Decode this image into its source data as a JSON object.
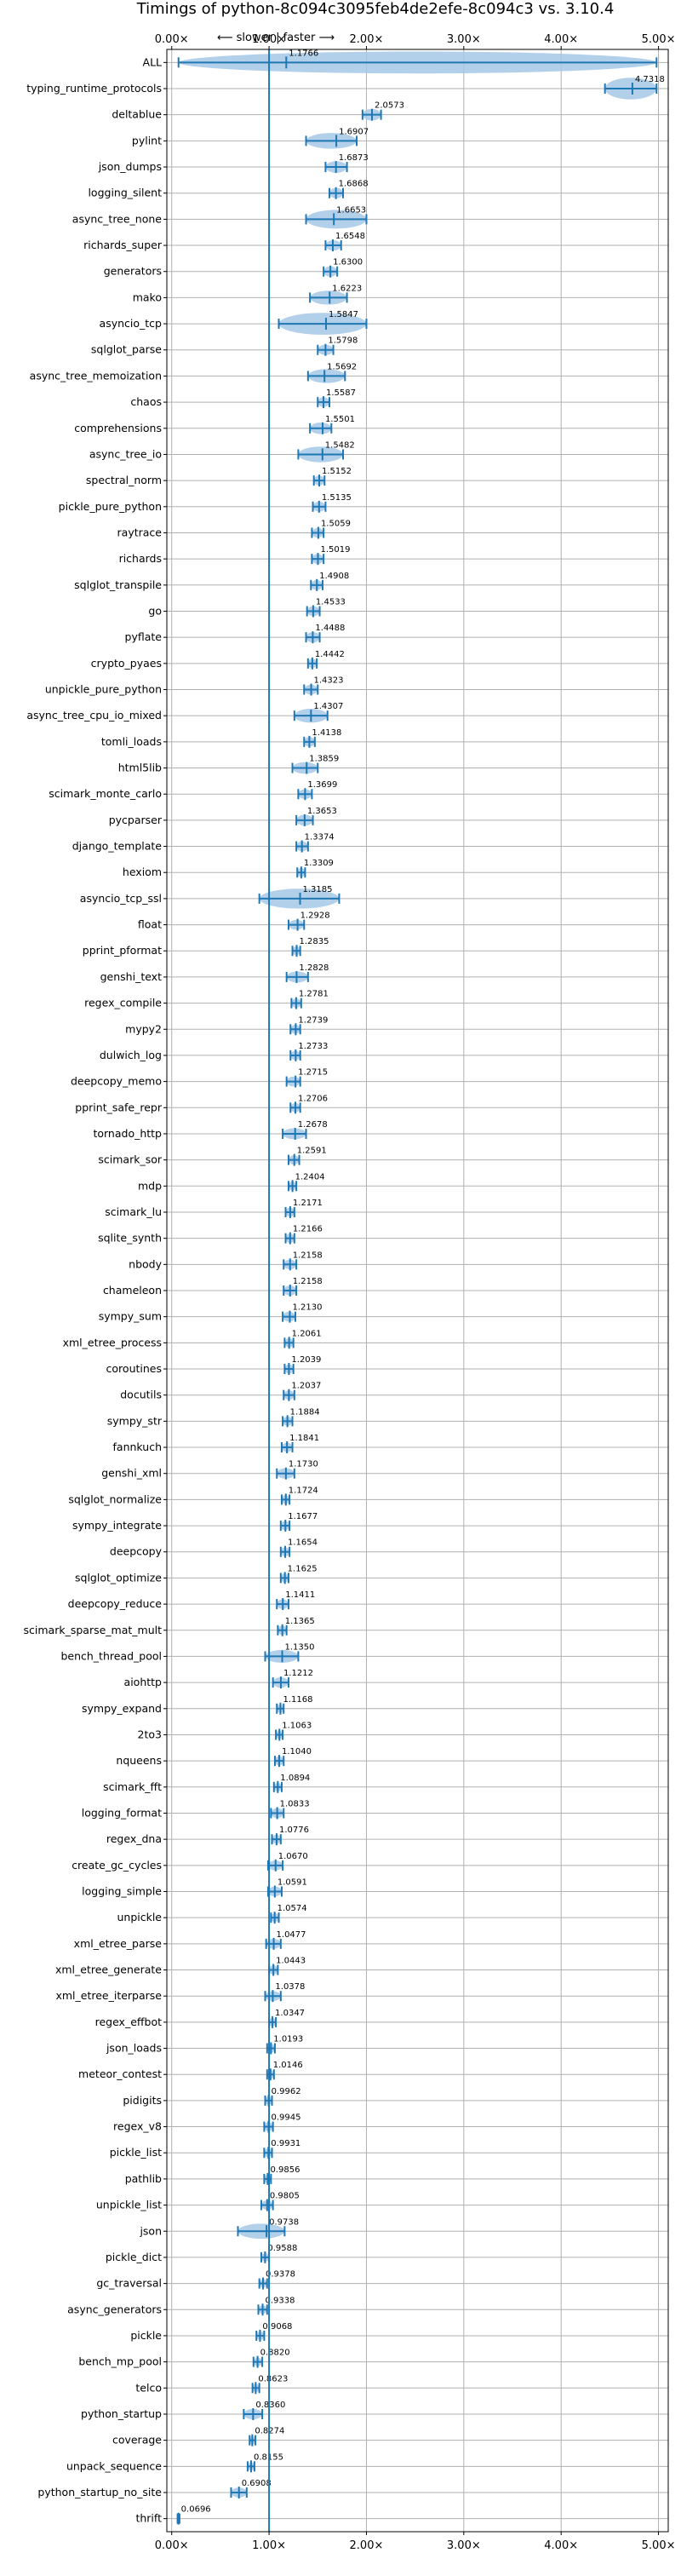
{
  "chart_data": {
    "type": "violin",
    "title": "Timings of python-8c094c3095feb4de2efe-8c094c3 vs. 3.10.4",
    "direction_note": "⟵ slower | faster ⟶",
    "xlim": [
      -0.05,
      5.1
    ],
    "xticks": [
      0,
      1,
      2,
      3,
      4,
      5
    ],
    "xtick_labels": [
      "0.00×",
      "1.00×",
      "2.00×",
      "3.00×",
      "4.00×",
      "5.00×"
    ],
    "reference_line": 1.0,
    "grid": true,
    "colors": {
      "violin": "#a6c8e8",
      "line": "#1f77b4",
      "axes": "#000000",
      "grid": "#b0b0b0",
      "median": "#ff8080"
    },
    "benchmarks": [
      {
        "name": "ALL",
        "median": 1.1766,
        "min": 0.07,
        "max": 4.98,
        "spread": 0.4
      },
      {
        "name": "typing_runtime_protocols",
        "median": 4.7318,
        "min": 4.45,
        "max": 4.98,
        "spread": 0.25
      },
      {
        "name": "deltablue",
        "median": 2.0573,
        "min": 1.96,
        "max": 2.15,
        "spread": 0.08
      },
      {
        "name": "pylint",
        "median": 1.6907,
        "min": 1.38,
        "max": 1.9,
        "spread": 0.15
      },
      {
        "name": "json_dumps",
        "median": 1.6873,
        "min": 1.58,
        "max": 1.8,
        "spread": 0.08
      },
      {
        "name": "logging_silent",
        "median": 1.6868,
        "min": 1.62,
        "max": 1.76,
        "spread": 0.06
      },
      {
        "name": "async_tree_none",
        "median": 1.6653,
        "min": 1.38,
        "max": 2.0,
        "spread": 0.2
      },
      {
        "name": "richards_super",
        "median": 1.6548,
        "min": 1.58,
        "max": 1.74,
        "spread": 0.06
      },
      {
        "name": "generators",
        "median": 1.63,
        "min": 1.56,
        "max": 1.7,
        "spread": 0.06
      },
      {
        "name": "mako",
        "median": 1.6223,
        "min": 1.42,
        "max": 1.8,
        "spread": 0.12
      },
      {
        "name": "asyncio_tcp",
        "median": 1.5847,
        "min": 1.1,
        "max": 2.0,
        "spread": 0.28
      },
      {
        "name": "sqlglot_parse",
        "median": 1.5798,
        "min": 1.5,
        "max": 1.66,
        "spread": 0.06
      },
      {
        "name": "async_tree_memoization",
        "median": 1.5692,
        "min": 1.4,
        "max": 1.78,
        "spread": 0.12
      },
      {
        "name": "chaos",
        "median": 1.5587,
        "min": 1.5,
        "max": 1.62,
        "spread": 0.05
      },
      {
        "name": "comprehensions",
        "median": 1.5501,
        "min": 1.42,
        "max": 1.64,
        "spread": 0.08
      },
      {
        "name": "async_tree_io",
        "median": 1.5482,
        "min": 1.3,
        "max": 1.76,
        "spread": 0.15
      },
      {
        "name": "spectral_norm",
        "median": 1.5152,
        "min": 1.46,
        "max": 1.57,
        "spread": 0.05
      },
      {
        "name": "pickle_pure_python",
        "median": 1.5135,
        "min": 1.45,
        "max": 1.58,
        "spread": 0.05
      },
      {
        "name": "raytrace",
        "median": 1.5059,
        "min": 1.44,
        "max": 1.56,
        "spread": 0.05
      },
      {
        "name": "richards",
        "median": 1.5019,
        "min": 1.44,
        "max": 1.56,
        "spread": 0.05
      },
      {
        "name": "sqlglot_transpile",
        "median": 1.4908,
        "min": 1.43,
        "max": 1.55,
        "spread": 0.05
      },
      {
        "name": "go",
        "median": 1.4533,
        "min": 1.39,
        "max": 1.52,
        "spread": 0.05
      },
      {
        "name": "pyflate",
        "median": 1.4488,
        "min": 1.38,
        "max": 1.52,
        "spread": 0.06
      },
      {
        "name": "crypto_pyaes",
        "median": 1.4442,
        "min": 1.4,
        "max": 1.49,
        "spread": 0.04
      },
      {
        "name": "unpickle_pure_python",
        "median": 1.4323,
        "min": 1.36,
        "max": 1.5,
        "spread": 0.05
      },
      {
        "name": "async_tree_cpu_io_mixed",
        "median": 1.4307,
        "min": 1.26,
        "max": 1.6,
        "spread": 0.12
      },
      {
        "name": "tomli_loads",
        "median": 1.4138,
        "min": 1.36,
        "max": 1.47,
        "spread": 0.05
      },
      {
        "name": "html5lib",
        "median": 1.3859,
        "min": 1.24,
        "max": 1.5,
        "spread": 0.08
      },
      {
        "name": "scimark_monte_carlo",
        "median": 1.3699,
        "min": 1.3,
        "max": 1.44,
        "spread": 0.05
      },
      {
        "name": "pycparser",
        "median": 1.3653,
        "min": 1.28,
        "max": 1.45,
        "spread": 0.07
      },
      {
        "name": "django_template",
        "median": 1.3374,
        "min": 1.28,
        "max": 1.4,
        "spread": 0.05
      },
      {
        "name": "hexiom",
        "median": 1.3309,
        "min": 1.29,
        "max": 1.37,
        "spread": 0.04
      },
      {
        "name": "asyncio_tcp_ssl",
        "median": 1.3185,
        "min": 0.9,
        "max": 1.72,
        "spread": 0.22
      },
      {
        "name": "float",
        "median": 1.2928,
        "min": 1.2,
        "max": 1.36,
        "spread": 0.05
      },
      {
        "name": "pprint_pformat",
        "median": 1.2835,
        "min": 1.24,
        "max": 1.32,
        "spread": 0.04
      },
      {
        "name": "genshi_text",
        "median": 1.2828,
        "min": 1.18,
        "max": 1.4,
        "spread": 0.07
      },
      {
        "name": "regex_compile",
        "median": 1.2781,
        "min": 1.23,
        "max": 1.33,
        "spread": 0.04
      },
      {
        "name": "mypy2",
        "median": 1.2739,
        "min": 1.22,
        "max": 1.32,
        "spread": 0.04
      },
      {
        "name": "dulwich_log",
        "median": 1.2733,
        "min": 1.22,
        "max": 1.32,
        "spread": 0.04
      },
      {
        "name": "deepcopy_memo",
        "median": 1.2715,
        "min": 1.18,
        "max": 1.32,
        "spread": 0.05
      },
      {
        "name": "pprint_safe_repr",
        "median": 1.2706,
        "min": 1.22,
        "max": 1.32,
        "spread": 0.04
      },
      {
        "name": "tornado_http",
        "median": 1.2678,
        "min": 1.14,
        "max": 1.38,
        "spread": 0.07
      },
      {
        "name": "scimark_sor",
        "median": 1.2591,
        "min": 1.2,
        "max": 1.31,
        "spread": 0.04
      },
      {
        "name": "mdp",
        "median": 1.2404,
        "min": 1.2,
        "max": 1.28,
        "spread": 0.04
      },
      {
        "name": "scimark_lu",
        "median": 1.2171,
        "min": 1.17,
        "max": 1.26,
        "spread": 0.04
      },
      {
        "name": "sqlite_synth",
        "median": 1.2166,
        "min": 1.17,
        "max": 1.26,
        "spread": 0.04
      },
      {
        "name": "nbody",
        "median": 1.2158,
        "min": 1.15,
        "max": 1.28,
        "spread": 0.05
      },
      {
        "name": "chameleon",
        "median": 1.2158,
        "min": 1.15,
        "max": 1.28,
        "spread": 0.05
      },
      {
        "name": "sympy_sum",
        "median": 1.213,
        "min": 1.14,
        "max": 1.27,
        "spread": 0.05
      },
      {
        "name": "xml_etree_process",
        "median": 1.2061,
        "min": 1.16,
        "max": 1.25,
        "spread": 0.04
      },
      {
        "name": "coroutines",
        "median": 1.2039,
        "min": 1.16,
        "max": 1.25,
        "spread": 0.04
      },
      {
        "name": "docutils",
        "median": 1.2037,
        "min": 1.15,
        "max": 1.26,
        "spread": 0.04
      },
      {
        "name": "sympy_str",
        "median": 1.1884,
        "min": 1.14,
        "max": 1.24,
        "spread": 0.04
      },
      {
        "name": "fannkuch",
        "median": 1.1841,
        "min": 1.13,
        "max": 1.24,
        "spread": 0.04
      },
      {
        "name": "genshi_xml",
        "median": 1.173,
        "min": 1.08,
        "max": 1.26,
        "spread": 0.06
      },
      {
        "name": "sqlglot_normalize",
        "median": 1.1724,
        "min": 1.13,
        "max": 1.21,
        "spread": 0.04
      },
      {
        "name": "sympy_integrate",
        "median": 1.1677,
        "min": 1.12,
        "max": 1.21,
        "spread": 0.04
      },
      {
        "name": "deepcopy",
        "median": 1.1654,
        "min": 1.12,
        "max": 1.21,
        "spread": 0.04
      },
      {
        "name": "sqlglot_optimize",
        "median": 1.1625,
        "min": 1.12,
        "max": 1.2,
        "spread": 0.04
      },
      {
        "name": "deepcopy_reduce",
        "median": 1.1411,
        "min": 1.08,
        "max": 1.2,
        "spread": 0.05
      },
      {
        "name": "scimark_sparse_mat_mult",
        "median": 1.1365,
        "min": 1.09,
        "max": 1.18,
        "spread": 0.04
      },
      {
        "name": "bench_thread_pool",
        "median": 1.135,
        "min": 0.96,
        "max": 1.3,
        "spread": 0.1
      },
      {
        "name": "aiohttp",
        "median": 1.1212,
        "min": 1.04,
        "max": 1.2,
        "spread": 0.06
      },
      {
        "name": "sympy_expand",
        "median": 1.1168,
        "min": 1.08,
        "max": 1.15,
        "spread": 0.03
      },
      {
        "name": "2to3",
        "median": 1.1063,
        "min": 1.07,
        "max": 1.14,
        "spread": 0.03
      },
      {
        "name": "nqueens",
        "median": 1.104,
        "min": 1.06,
        "max": 1.15,
        "spread": 0.04
      },
      {
        "name": "scimark_fft",
        "median": 1.0894,
        "min": 1.05,
        "max": 1.13,
        "spread": 0.03
      },
      {
        "name": "logging_format",
        "median": 1.0833,
        "min": 1.02,
        "max": 1.15,
        "spread": 0.05
      },
      {
        "name": "regex_dna",
        "median": 1.0776,
        "min": 1.03,
        "max": 1.12,
        "spread": 0.04
      },
      {
        "name": "create_gc_cycles",
        "median": 1.067,
        "min": 0.99,
        "max": 1.14,
        "spread": 0.05
      },
      {
        "name": "logging_simple",
        "median": 1.0591,
        "min": 0.99,
        "max": 1.13,
        "spread": 0.05
      },
      {
        "name": "unpickle",
        "median": 1.0574,
        "min": 1.02,
        "max": 1.1,
        "spread": 0.04
      },
      {
        "name": "xml_etree_parse",
        "median": 1.0477,
        "min": 0.97,
        "max": 1.12,
        "spread": 0.05
      },
      {
        "name": "xml_etree_generate",
        "median": 1.0443,
        "min": 1.0,
        "max": 1.09,
        "spread": 0.04
      },
      {
        "name": "xml_etree_iterparse",
        "median": 1.0378,
        "min": 0.96,
        "max": 1.12,
        "spread": 0.05
      },
      {
        "name": "regex_effbot",
        "median": 1.0347,
        "min": 1.0,
        "max": 1.07,
        "spread": 0.03
      },
      {
        "name": "json_loads",
        "median": 1.0193,
        "min": 0.98,
        "max": 1.06,
        "spread": 0.04
      },
      {
        "name": "meteor_contest",
        "median": 1.0146,
        "min": 0.98,
        "max": 1.05,
        "spread": 0.03
      },
      {
        "name": "pidigits",
        "median": 0.9962,
        "min": 0.96,
        "max": 1.03,
        "spread": 0.03
      },
      {
        "name": "regex_v8",
        "median": 0.9945,
        "min": 0.95,
        "max": 1.04,
        "spread": 0.04
      },
      {
        "name": "pickle_list",
        "median": 0.9931,
        "min": 0.95,
        "max": 1.03,
        "spread": 0.03
      },
      {
        "name": "pathlib",
        "median": 0.9856,
        "min": 0.95,
        "max": 1.02,
        "spread": 0.03
      },
      {
        "name": "unpickle_list",
        "median": 0.9805,
        "min": 0.92,
        "max": 1.04,
        "spread": 0.04
      },
      {
        "name": "json",
        "median": 0.9738,
        "min": 0.68,
        "max": 1.16,
        "spread": 0.14
      },
      {
        "name": "pickle_dict",
        "median": 0.9588,
        "min": 0.92,
        "max": 1.0,
        "spread": 0.03
      },
      {
        "name": "gc_traversal",
        "median": 0.9378,
        "min": 0.9,
        "max": 0.98,
        "spread": 0.03
      },
      {
        "name": "async_generators",
        "median": 0.9338,
        "min": 0.89,
        "max": 0.98,
        "spread": 0.03
      },
      {
        "name": "pickle",
        "median": 0.9068,
        "min": 0.87,
        "max": 0.95,
        "spread": 0.03
      },
      {
        "name": "bench_mp_pool",
        "median": 0.882,
        "min": 0.84,
        "max": 0.93,
        "spread": 0.03
      },
      {
        "name": "telco",
        "median": 0.8623,
        "min": 0.83,
        "max": 0.9,
        "spread": 0.03
      },
      {
        "name": "python_startup",
        "median": 0.836,
        "min": 0.74,
        "max": 0.93,
        "spread": 0.06
      },
      {
        "name": "coverage",
        "median": 0.8274,
        "min": 0.8,
        "max": 0.86,
        "spread": 0.03
      },
      {
        "name": "unpack_sequence",
        "median": 0.8155,
        "min": 0.78,
        "max": 0.85,
        "spread": 0.03
      },
      {
        "name": "python_startup_no_site",
        "median": 0.6908,
        "min": 0.61,
        "max": 0.77,
        "spread": 0.05
      },
      {
        "name": "thrift",
        "median": 0.0696,
        "min": 0.06,
        "max": 0.08,
        "spread": 0.005
      }
    ]
  }
}
